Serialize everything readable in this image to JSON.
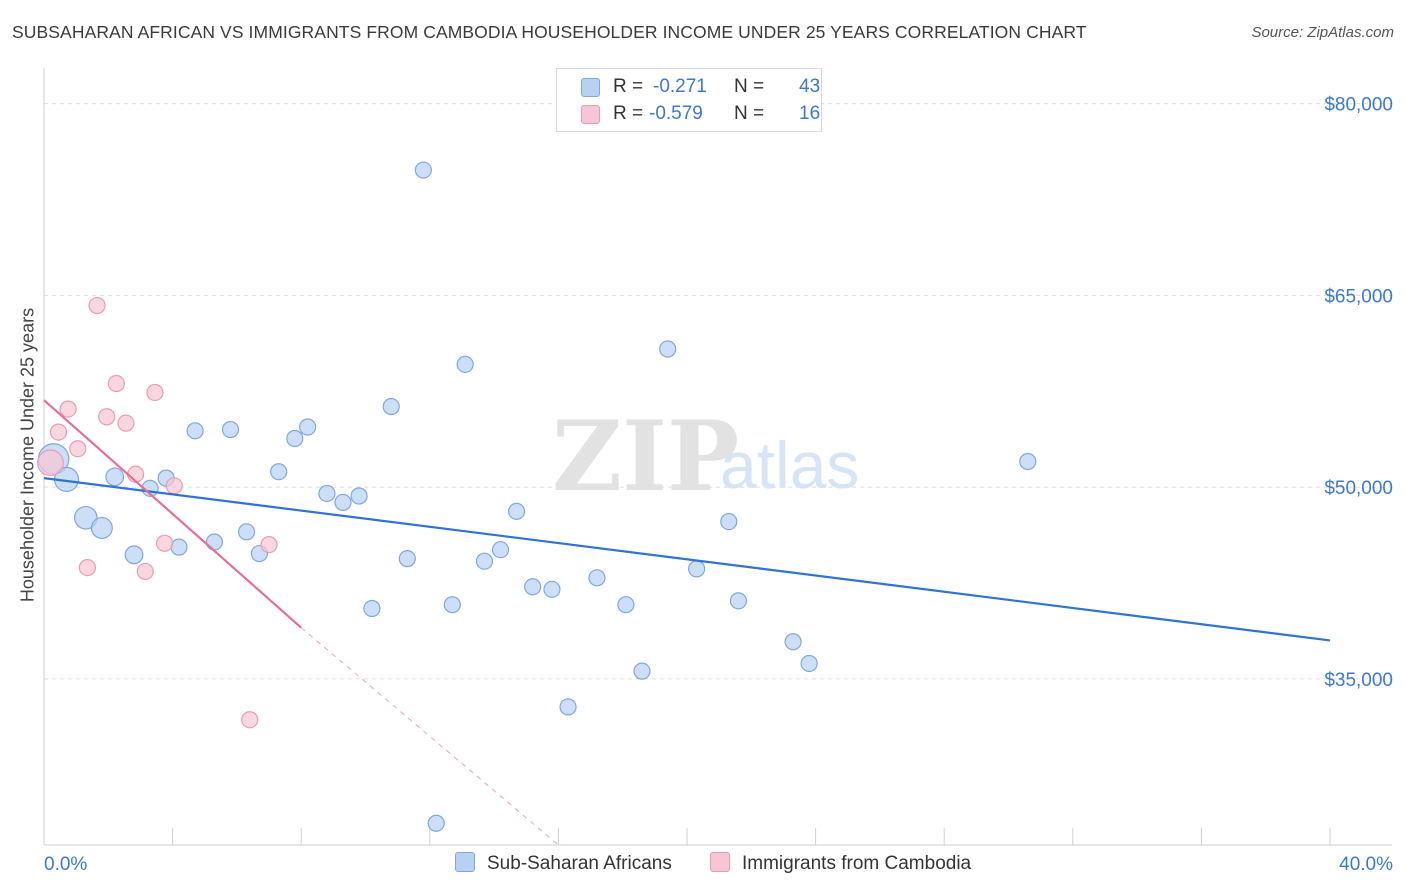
{
  "title": "SUBSAHARAN AFRICAN VS IMMIGRANTS FROM CAMBODIA HOUSEHOLDER INCOME UNDER 25 YEARS CORRELATION CHART",
  "source": "Source: ZipAtlas.com",
  "watermark": {
    "zip": "ZIP",
    "atlas": "atlas"
  },
  "legend": {
    "r_label": "R =",
    "n_label": "N =",
    "series": [
      {
        "r": "-0.271",
        "n": "43"
      },
      {
        "r": "-0.579",
        "n": "16"
      }
    ]
  },
  "colors": {
    "blue_fill": "#b7d1f3",
    "blue_stroke": "#7fa7de",
    "blue_line": "#2f73d4",
    "pink_fill": "#f7c6d4",
    "pink_stroke": "#ec9ab4",
    "pink_line": "#e56d97",
    "axis_label": "#3b78d0",
    "grid": "#dcdcdc"
  },
  "chart_data": {
    "type": "scatter",
    "title": "SUBSAHARAN AFRICAN VS IMMIGRANTS FROM CAMBODIA HOUSEHOLDER INCOME UNDER 25 YEARS CORRELATION CHART",
    "xlabel": "",
    "ylabel": "Householder Income Under 25 years",
    "xlim": [
      0,
      40
    ],
    "ylim": [
      22000,
      82000
    ],
    "x_tick_labels": [
      "0.0%",
      "40.0%"
    ],
    "y_ticks": [
      35000,
      50000,
      65000,
      80000
    ],
    "y_tick_labels": [
      "$35,000",
      "$50,000",
      "$65,000",
      "$80,000"
    ],
    "grid": "horizontal dashed",
    "legend_position": "top-center",
    "series": [
      {
        "name": "Sub-Saharan Africans",
        "color": "#b7d1f3",
        "points": [
          [
            0.3,
            52200,
            1.9
          ],
          [
            0.7,
            50600,
            1.5
          ],
          [
            1.3,
            47600,
            1.4
          ],
          [
            1.8,
            46800,
            1.3
          ],
          [
            2.2,
            50800,
            1.1
          ],
          [
            2.8,
            44700,
            1.1
          ],
          [
            3.3,
            49900,
            1.0
          ],
          [
            3.8,
            50700,
            1.0
          ],
          [
            4.2,
            45300,
            1.0
          ],
          [
            4.7,
            54400,
            1.0
          ],
          [
            5.3,
            45700,
            1.0
          ],
          [
            5.8,
            54500,
            1.0
          ],
          [
            6.3,
            46500,
            1.0
          ],
          [
            6.7,
            44800,
            1.0
          ],
          [
            7.3,
            51200,
            1.0
          ],
          [
            7.8,
            53800,
            1.0
          ],
          [
            8.2,
            54700,
            1.0
          ],
          [
            8.8,
            49500,
            1.0
          ],
          [
            9.3,
            48800,
            1.0
          ],
          [
            9.8,
            49300,
            1.0
          ],
          [
            10.2,
            40500,
            1.0
          ],
          [
            10.8,
            56300,
            1.0
          ],
          [
            11.3,
            44400,
            1.0
          ],
          [
            11.8,
            74800,
            1.0
          ],
          [
            12.2,
            23700,
            1.0
          ],
          [
            12.7,
            40800,
            1.0
          ],
          [
            13.1,
            59600,
            1.0
          ],
          [
            13.7,
            44200,
            1.0
          ],
          [
            14.2,
            45100,
            1.0
          ],
          [
            14.7,
            48100,
            1.0
          ],
          [
            15.2,
            42200,
            1.0
          ],
          [
            15.8,
            42000,
            1.0
          ],
          [
            16.3,
            32800,
            1.0
          ],
          [
            17.2,
            42900,
            1.0
          ],
          [
            18.1,
            40800,
            1.0
          ],
          [
            18.6,
            35600,
            1.0
          ],
          [
            19.4,
            60800,
            1.0
          ],
          [
            20.3,
            43600,
            1.0
          ],
          [
            21.3,
            47300,
            1.0
          ],
          [
            21.6,
            41100,
            1.0
          ],
          [
            23.3,
            37900,
            1.0
          ],
          [
            23.8,
            36200,
            1.0
          ],
          [
            30.6,
            52000,
            1.0
          ]
        ],
        "trend": {
          "x": [
            0,
            40
          ],
          "y": [
            50700,
            38000
          ]
        }
      },
      {
        "name": "Immigrants from Cambodia",
        "color": "#f7c6d4",
        "points": [
          [
            0.2,
            51900,
            1.6
          ],
          [
            0.45,
            54300,
            1.0
          ],
          [
            0.75,
            56100,
            1.0
          ],
          [
            1.05,
            53000,
            1.0
          ],
          [
            1.35,
            43700,
            1.0
          ],
          [
            1.65,
            64200,
            1.0
          ],
          [
            1.95,
            55500,
            1.0
          ],
          [
            2.25,
            58100,
            1.0
          ],
          [
            2.55,
            55000,
            1.0
          ],
          [
            2.85,
            51000,
            1.0
          ],
          [
            3.15,
            43400,
            1.0
          ],
          [
            3.45,
            57400,
            1.0
          ],
          [
            3.75,
            45600,
            1.0
          ],
          [
            4.05,
            50100,
            1.0
          ],
          [
            6.4,
            31800,
            1.0
          ],
          [
            7.0,
            45500,
            1.0
          ]
        ],
        "trend": {
          "x": [
            0,
            8
          ],
          "y": [
            56800,
            39000
          ]
        },
        "trend_extension": {
          "x": [
            8,
            16
          ],
          "y": [
            39000,
            22000
          ]
        }
      }
    ]
  }
}
